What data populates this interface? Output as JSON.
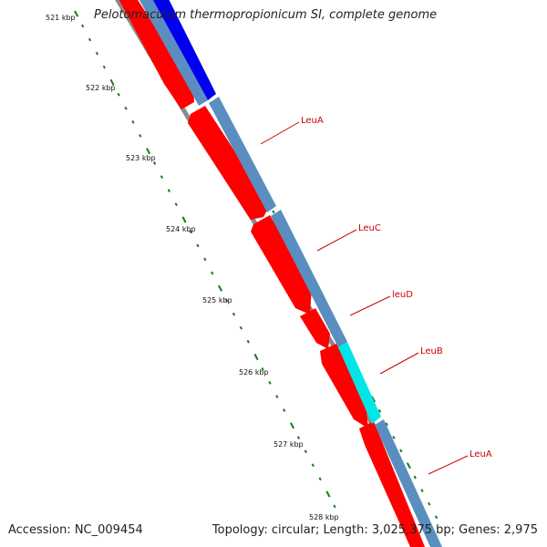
{
  "title": "Pelotomaculum thermopropionicum SI, complete genome",
  "footer": {
    "accession": "Accession: NC_009454",
    "topology": "Topology: circular; Length: 3,025,375 bp; Genes: 2,975"
  },
  "tick_labels": [
    "521 kbp",
    "522 kbp",
    "523 kbp",
    "524 kbp",
    "525 kbp",
    "526 kbp",
    "527 kbp",
    "528 kbp"
  ],
  "gene_labels": [
    "LeuA",
    "LeuC",
    "leuD",
    "LeuB",
    "LeuA"
  ],
  "colors": {
    "forward_cds": "#ff0000",
    "reverse_cds": "#5b8ec0",
    "blue_cds": "#0000ee",
    "cyan_cds": "#00e6e6",
    "backbone": "#8a8a8a",
    "tick": "#1a7a1a",
    "label": "#cc0000"
  }
}
